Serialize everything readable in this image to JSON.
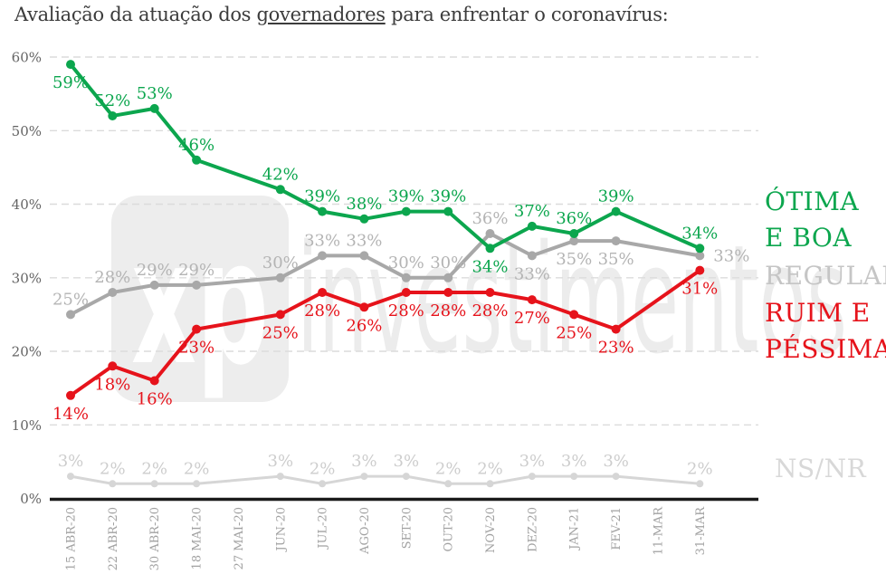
{
  "title": {
    "prefix": "Avaliação da atuação dos ",
    "underlined": "governadores",
    "suffix": " para enfrentar o coronavírus:"
  },
  "watermark": {
    "logo": "xp",
    "name": "investimentos"
  },
  "legend": {
    "otima": {
      "label": "ÓTIMA\nE BOA",
      "color": "#0ca64e"
    },
    "regular": {
      "label": "REGULAR",
      "color": "#c5c5c5"
    },
    "ruim": {
      "label": "RUIM E\nPÉSSIMA",
      "color": "#e6131b"
    },
    "nsnr": {
      "label": "NS/NR",
      "color": "#d8d8d8"
    }
  },
  "chart_data": {
    "type": "line",
    "title": "Avaliação da atuação dos governadores para enfrentar o coronavírus:",
    "categories": [
      "15 ABR-20",
      "22 ABR-20",
      "30 ABR-20",
      "18 MAI-20",
      "27 MAI-20",
      "JUN-20",
      "JUL-20",
      "AGO-20",
      "SET-20",
      "OUT-20",
      "NOV-20",
      "DEZ-20",
      "JAN-21",
      "FEV-21",
      "11-MAR",
      "31-MAR"
    ],
    "y_ticks": [
      "0%",
      "10%",
      "20%",
      "30%",
      "40%",
      "50%",
      "60%"
    ],
    "ylim": [
      0,
      60
    ],
    "grid": "dashed-horizontal",
    "legend_position": "right",
    "series": [
      {
        "name": "ÓTIMA E BOA",
        "color": "#0ca64e",
        "label_color": "#0ca64e",
        "width": 4,
        "marker_r": 5,
        "values": [
          59,
          52,
          53,
          46,
          null,
          42,
          39,
          38,
          39,
          39,
          34,
          37,
          36,
          39,
          null,
          34
        ],
        "label_pos": [
          "below",
          "above",
          "above",
          "above",
          null,
          "above",
          "above",
          "above",
          "above",
          "above",
          "below",
          "above",
          "above",
          "above",
          null,
          "above"
        ]
      },
      {
        "name": "REGULAR",
        "color": "#a8a8a8",
        "label_color": "#b4b4b4",
        "width": 4,
        "marker_r": 5,
        "values": [
          25,
          28,
          29,
          29,
          null,
          30,
          33,
          33,
          30,
          30,
          36,
          33,
          35,
          35,
          null,
          33
        ],
        "label_pos": [
          "above",
          "above",
          "above",
          "above",
          null,
          "above",
          "above",
          "above",
          "above",
          "above",
          "above",
          "below",
          "below",
          "below",
          null,
          "right"
        ]
      },
      {
        "name": "RUIM E PÉSSIMA",
        "color": "#e6131b",
        "label_color": "#e6131b",
        "width": 4,
        "marker_r": 5,
        "values": [
          14,
          18,
          16,
          23,
          null,
          25,
          28,
          26,
          28,
          28,
          28,
          27,
          25,
          23,
          null,
          31
        ],
        "label_pos": [
          "below",
          "below",
          "below",
          "below",
          null,
          "below",
          "below",
          "below",
          "below",
          "below",
          "below",
          "below",
          "below",
          "below",
          null,
          "below"
        ]
      },
      {
        "name": "NS/NR",
        "color": "#d6d6d6",
        "label_color": "#cdcdcd",
        "width": 3,
        "marker_r": 4,
        "values": [
          3,
          2,
          2,
          2,
          null,
          3,
          2,
          3,
          3,
          2,
          2,
          3,
          3,
          3,
          null,
          2
        ],
        "label_pos": [
          "above",
          "above",
          "above",
          "above",
          null,
          "above",
          "above",
          "above",
          "above",
          "above",
          "above",
          "above",
          "above",
          "above",
          null,
          "above"
        ]
      }
    ]
  }
}
